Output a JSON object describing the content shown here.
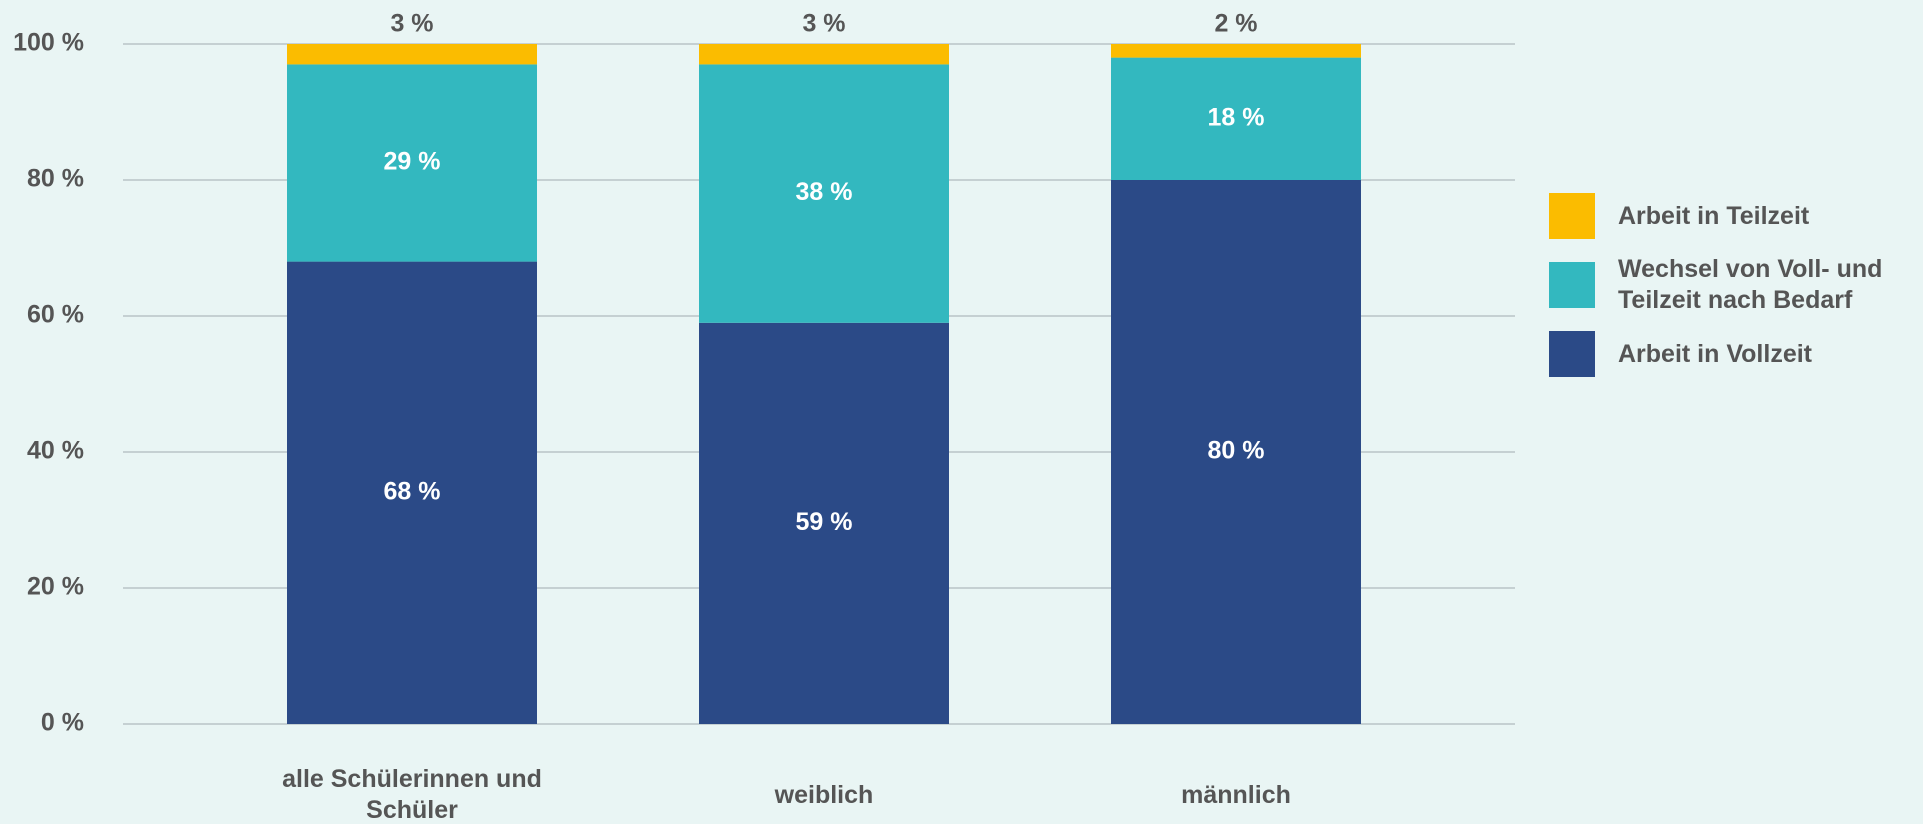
{
  "chart_data": {
    "type": "stacked_bar",
    "categories": [
      "alle Schülerinnen und Schüler",
      "weiblich",
      "männlich"
    ],
    "series": [
      {
        "name": "Arbeit in Vollzeit",
        "color": "#2b4a87",
        "values": [
          68,
          59,
          80
        ],
        "value_labels": [
          "68 %",
          "59 %",
          "80 %"
        ]
      },
      {
        "name": "Wechsel von Voll- und Teilzeit nach Bedarf",
        "color": "#33b8bf",
        "values": [
          29,
          38,
          18
        ],
        "value_labels": [
          "29 %",
          "38 %",
          "18 %"
        ]
      },
      {
        "name": "Arbeit in Teilzeit",
        "color": "#fbbc00",
        "values": [
          3,
          3,
          2
        ],
        "value_labels": [
          "3 %",
          "3 %",
          "2 %"
        ]
      }
    ],
    "ylim": [
      0,
      100
    ],
    "yticks": [
      {
        "value": 0,
        "label": "0 %"
      },
      {
        "value": 20,
        "label": "20 %"
      },
      {
        "value": 40,
        "label": "40 %"
      },
      {
        "value": 60,
        "label": "60 %"
      },
      {
        "value": 80,
        "label": "80 %"
      },
      {
        "value": 100,
        "label": "100 %"
      }
    ],
    "grid": true,
    "legend": "right"
  }
}
